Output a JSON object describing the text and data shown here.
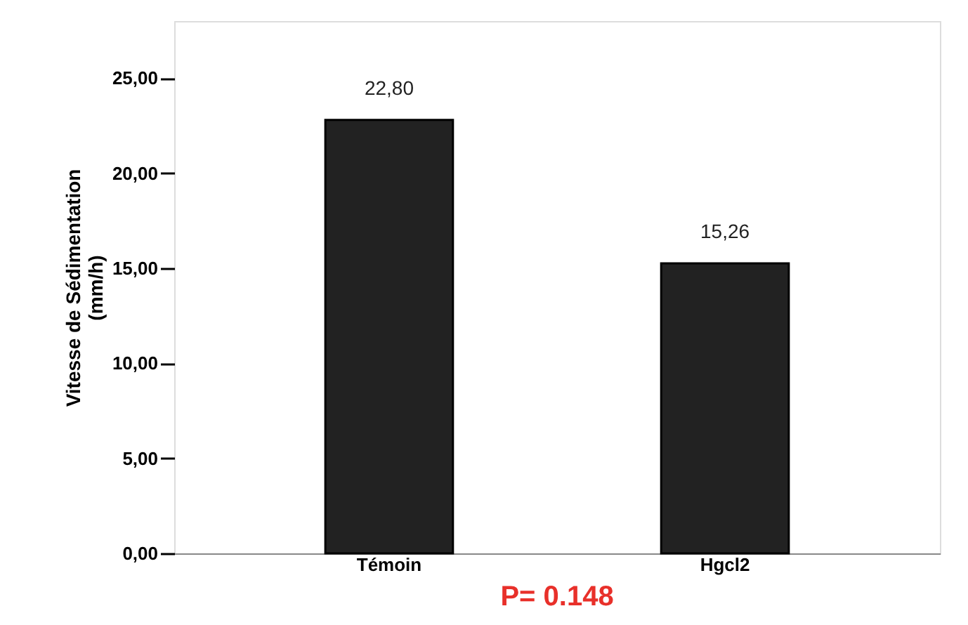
{
  "chart_data": {
    "type": "bar",
    "ylabel": "Vitesse de Sédimentation\n(mm/h)",
    "categories": [
      "Témoin",
      "Hgcl2"
    ],
    "values": [
      22.8,
      15.26
    ],
    "value_labels": [
      "22,80",
      "15,26"
    ],
    "color": "#222222",
    "ylim": [
      0,
      28
    ],
    "yticks": [
      {
        "value": 0,
        "label": "0,00"
      },
      {
        "value": 5,
        "label": "5,00"
      },
      {
        "value": 10,
        "label": "10,00"
      },
      {
        "value": 15,
        "label": "15,00"
      },
      {
        "value": 20,
        "label": "20,00"
      },
      {
        "value": 25,
        "label": "25,00"
      }
    ],
    "annotations": [
      {
        "text": "P= 0.148"
      }
    ],
    "grid": false
  }
}
